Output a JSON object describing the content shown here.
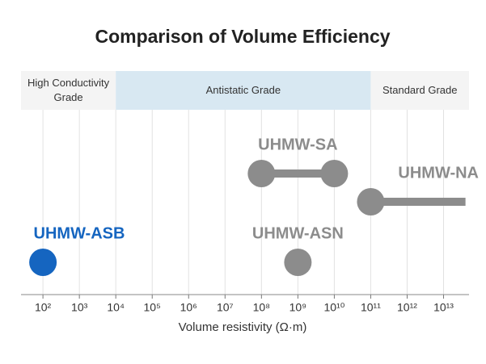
{
  "chart_data": {
    "type": "range",
    "title": "Comparison of Volume Efficiency",
    "x_label": "Volume resistivity (Ω·m)",
    "xscale": "log",
    "xlim": [
      25,
      50000000000000
    ],
    "xticks": [
      {
        "value": 100,
        "label": "10²"
      },
      {
        "value": 1000,
        "label": "10³"
      },
      {
        "value": 10000,
        "label": "10⁴"
      },
      {
        "value": 100000,
        "label": "10⁵"
      },
      {
        "value": 1000000,
        "label": "10⁶"
      },
      {
        "value": 10000000,
        "label": "10⁷"
      },
      {
        "value": 100000000,
        "label": "10⁸"
      },
      {
        "value": 1000000000,
        "label": "10⁹"
      },
      {
        "value": 10000000000,
        "label": "10¹⁰"
      },
      {
        "value": 100000000000,
        "label": "10¹¹"
      },
      {
        "value": 1000000000000,
        "label": "10¹²"
      },
      {
        "value": 10000000000000,
        "label": "10¹³"
      }
    ],
    "grid": true,
    "bands": [
      {
        "label": "High Conductivity Grade",
        "from": 25,
        "to": 10000,
        "color": "#f4f4f4"
      },
      {
        "label": "Antistatic Grade",
        "from": 10000,
        "to": 100000000000,
        "color": "#d8e8f2"
      },
      {
        "label": "Standard Grade",
        "from": 100000000000,
        "to": 50000000000000,
        "color": "#f4f4f4"
      }
    ],
    "series": [
      {
        "name": "UHMW-SA",
        "color": "#8c8c8c",
        "values": [
          100000000,
          10000000000
        ]
      },
      {
        "name": "UHMW-NA",
        "color": "#8c8c8c",
        "values": [
          100000000000,
          40000000000000
        ]
      },
      {
        "name": "UHMW-ASB",
        "color": "#1565c0",
        "values": [
          100
        ]
      },
      {
        "name": "UHMW-ASN",
        "color": "#8c8c8c",
        "values": [
          1000000000
        ]
      }
    ]
  }
}
